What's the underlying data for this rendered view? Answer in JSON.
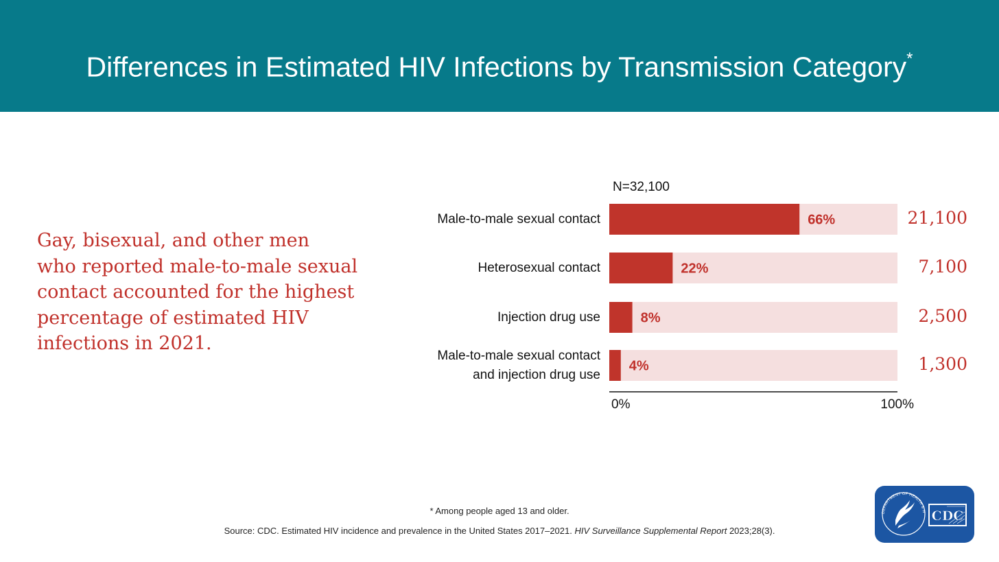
{
  "header": {
    "title": "Differences in Estimated HIV Infections by Transmission Category",
    "title_mark": "*"
  },
  "callout": {
    "lines": [
      "Gay, bisexual, and other men",
      "who reported male-to-male sexual",
      "contact accounted for the highest",
      "percentage of estimated HIV",
      "infections in 2021."
    ]
  },
  "chart_data": {
    "type": "bar",
    "orientation": "horizontal",
    "stacked_background": true,
    "annotation": "N=32,100",
    "categories": [
      "Male-to-male sexual contact",
      "Heterosexual contact",
      "Injection drug use",
      "Male-to-male sexual contact and injection drug use"
    ],
    "category_lines": [
      [
        "Male-to-male sexual contact"
      ],
      [
        "Heterosexual contact"
      ],
      [
        "Injection drug use"
      ],
      [
        "Male-to-male sexual contact",
        "and injection drug use"
      ]
    ],
    "values": [
      66,
      22,
      8,
      4
    ],
    "value_labels": [
      "66%",
      "22%",
      "8%",
      "4%"
    ],
    "counts": [
      "21,100",
      "7,100",
      "2,500",
      "1,300"
    ],
    "xlim": [
      0,
      100
    ],
    "x_tick_labels": [
      "0%",
      "100%"
    ],
    "xlabel": "",
    "ylabel": "",
    "grid": false,
    "colors": {
      "bar": "#c0342b",
      "track": "#f5dfdf",
      "value_label": "#c0302a",
      "axis": "#111111"
    }
  },
  "footer": {
    "footnote": "* Among people aged 13 and older.",
    "source_prefix": "Source: CDC. Estimated HIV incidence and prevalence in the United States 2017–2021. ",
    "source_journal": "HIV Surveillance Supplemental Report",
    "source_suffix": " 2023;28(3)."
  },
  "logo": {
    "seal_text": "DEPARTMENT OF HEALTH & HUMAN SERVICES USA",
    "wordmark": "CDC",
    "color": "#1c56a3"
  },
  "colors": {
    "header_bg": "#077a8a",
    "accent_red": "#c0302a"
  }
}
